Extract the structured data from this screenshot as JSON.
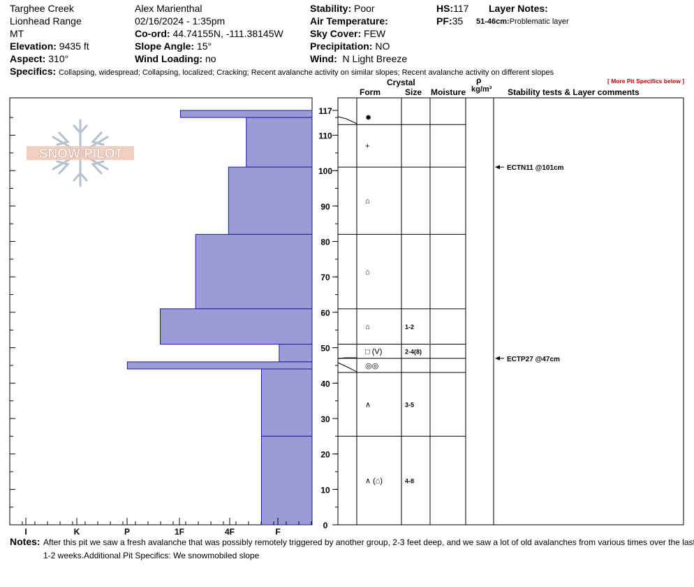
{
  "header": {
    "location": "Targhee Creek",
    "range": "Lionhead Range",
    "state": "MT",
    "elevation_label": "Elevation:",
    "elevation": "9435 ft",
    "aspect_label": "Aspect:",
    "aspect": "310°",
    "observer": "Alex Marienthal",
    "datetime": "02/16/2024 - 1:35pm",
    "coord_label": "Co-ord:",
    "coord": "44.74155N, -111.38145W",
    "slope_label": "Slope Angle:",
    "slope": "15°",
    "wind_loading_label": "Wind Loading:",
    "wind_loading": "no",
    "stability_label": "Stability:",
    "stability": "Poor",
    "air_temp_label": "Air Temperature:",
    "sky_label": "Sky Cover:",
    "sky": "FEW",
    "precip_label": "Precipitation:",
    "precip": "NO",
    "wind_label": "Wind:",
    "wind": "N Light Breeze",
    "hs_label": "HS:",
    "hs": "117",
    "pf_label": "PF:",
    "pf": "35",
    "layer_notes_label": "Layer Notes:",
    "layer_note_range": "51-46cm:",
    "layer_note_text": "Problematic layer",
    "specifics_label": "Specifics:",
    "specifics": "Collapsing, widespread; Collapsing, localized; Cracking; Recent avalanche activity on similar slopes; Recent avalanche activity on different slopes",
    "more_specifics": "[ More Pit Specifics below ]"
  },
  "columns": {
    "crystal": "Crystal",
    "form": "Form",
    "size": "Size",
    "moisture": "Moisture",
    "rho": "ρ",
    "density_unit": "kg/m³",
    "stability_comments": "Stability tests & Layer comments"
  },
  "logo_text": "SNOW PILOT",
  "colors": {
    "hardness_fill": "#9d9bd5",
    "hardness_edge": "#1a1aa0",
    "more_link": "#c00000"
  },
  "chart_data": {
    "type": "bar",
    "orientation": "horizontal",
    "y_axis": {
      "min": 0,
      "max": 117,
      "ticks": [
        0,
        10,
        20,
        30,
        40,
        50,
        60,
        70,
        80,
        90,
        100,
        110,
        117
      ]
    },
    "x_axis": {
      "categories": [
        "I",
        "K",
        "P",
        "1F",
        "4F",
        "F"
      ]
    },
    "hardness_layers": [
      {
        "top": 117,
        "bottom": 115,
        "hardness_level": 2.6
      },
      {
        "top": 115,
        "bottom": 101,
        "hardness_level": 1.3
      },
      {
        "top": 101,
        "bottom": 82,
        "hardness_level": 1.65
      },
      {
        "top": 82,
        "bottom": 61,
        "hardness_level": 2.3
      },
      {
        "top": 61,
        "bottom": 51,
        "hardness_level": 3.0
      },
      {
        "top": 51,
        "bottom": 46,
        "hardness_level": 0.65
      },
      {
        "top": 46,
        "bottom": 44,
        "hardness_level": 3.65
      },
      {
        "top": 44,
        "bottom": 25,
        "hardness_level": 1.0
      },
      {
        "top": 25,
        "bottom": 0,
        "hardness_level": 1.0
      }
    ]
  },
  "layers": [
    {
      "top": 117,
      "bottom": 113,
      "form": "✹",
      "size": ""
    },
    {
      "top": 113,
      "bottom": 101,
      "form": "+",
      "size": ""
    },
    {
      "top": 101,
      "bottom": 82,
      "form": "⌂",
      "size": ""
    },
    {
      "top": 82,
      "bottom": 61,
      "form": "⌂",
      "size": ""
    },
    {
      "top": 61,
      "bottom": 51,
      "form": "⌂",
      "size": "1-2"
    },
    {
      "top": 51,
      "bottom": 47,
      "form": "□ (V)",
      "size": "2-4(8)"
    },
    {
      "top": 47,
      "bottom": 43,
      "form": "◎◎",
      "size": ""
    },
    {
      "top": 43,
      "bottom": 25,
      "form": "∧",
      "size": "3-5"
    },
    {
      "top": 25,
      "bottom": 0,
      "form": "∧ (⌂)",
      "size": "4-8"
    }
  ],
  "tests": [
    {
      "depth": 101,
      "label": "ECTN11 @101cm"
    },
    {
      "depth": 47,
      "label": "ECTP27 @47cm"
    }
  ],
  "notes": {
    "label": "Notes:",
    "text": "After this pit we saw a fresh avalanche that was possibly remotely triggered by another group, 2-3 feet deep, and we saw a lot of old avalanches from various times over the last 1-2 weeks.Additional Pit Specifics: We snowmobiled slope"
  }
}
